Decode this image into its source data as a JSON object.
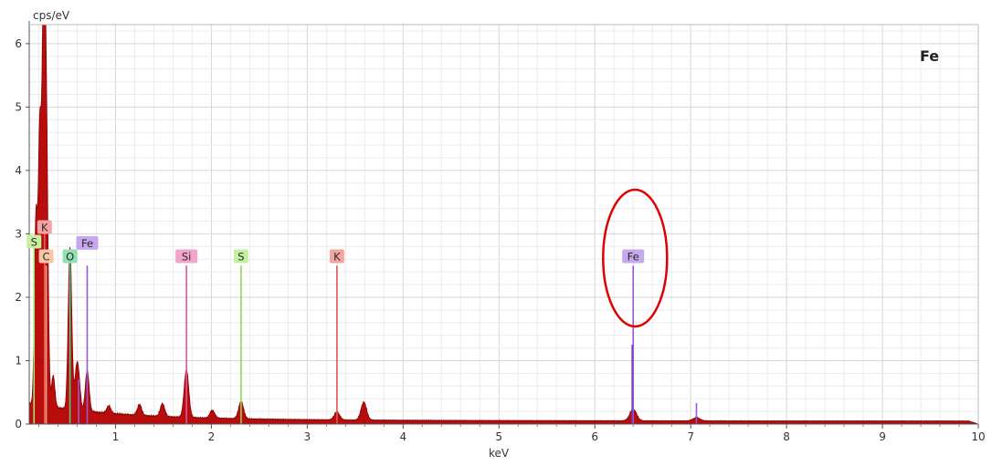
{
  "chart_data": {
    "type": "line",
    "xlabel": "keV",
    "ylabel": "cps/eV",
    "corner_label": "Fe",
    "xlim": [
      0.1,
      10
    ],
    "ylim": [
      0,
      6.3
    ],
    "x_ticks": [
      1,
      2,
      3,
      4,
      5,
      6,
      7,
      8,
      9,
      10
    ],
    "y_ticks": [
      0,
      1,
      2,
      3,
      4,
      5,
      6
    ],
    "grid": true,
    "spectrum_color": "#b30000",
    "series": [
      {
        "peaks": [
          {
            "x": 0.17,
            "y": 2.9
          },
          {
            "x": 0.21,
            "y": 4.2
          },
          {
            "x": 0.25,
            "y": 6.25
          },
          {
            "x": 0.28,
            "y": 4.0
          },
          {
            "x": 0.35,
            "y": 0.5
          },
          {
            "x": 0.525,
            "y": 2.55
          },
          {
            "x": 0.59,
            "y": 0.5
          },
          {
            "x": 0.615,
            "y": 0.45
          },
          {
            "x": 0.705,
            "y": 0.65
          },
          {
            "x": 0.93,
            "y": 0.12
          },
          {
            "x": 1.25,
            "y": 0.17
          },
          {
            "x": 1.49,
            "y": 0.2
          },
          {
            "x": 1.74,
            "y": 0.75
          },
          {
            "x": 2.01,
            "y": 0.12
          },
          {
            "x": 2.31,
            "y": 0.27
          },
          {
            "x": 3.31,
            "y": 0.12
          },
          {
            "x": 3.59,
            "y": 0.28
          },
          {
            "x": 6.4,
            "y": 0.18
          },
          {
            "x": 7.06,
            "y": 0.05
          }
        ]
      }
    ],
    "marker_lines": [
      {
        "label": "S",
        "energy": 0.15,
        "height": 2.8,
        "color": "#a6e06f",
        "label_y": 2.87
      },
      {
        "label": "K",
        "energy": 0.26,
        "height": 3.1,
        "color": "#e85c5c",
        "label_y": 3.1
      },
      {
        "label": "C",
        "energy": 0.277,
        "height": 2.5,
        "color": "#f0a37b",
        "label_y": 2.64
      },
      {
        "label": "O",
        "energy": 0.525,
        "height": 2.55,
        "color": "#53c788",
        "label_y": 2.64
      },
      {
        "label": "Fe",
        "energy": 0.705,
        "height": 2.5,
        "color": "#9a58d6",
        "label_y": 2.85
      },
      {
        "label": "Fe",
        "energy": 0.615,
        "height": 0.7,
        "color": "#9a58d6"
      },
      {
        "label": "Si",
        "energy": 1.74,
        "height": 2.5,
        "color": "#e0569c",
        "label_y": 2.64
      },
      {
        "label": "S",
        "energy": 2.31,
        "height": 2.5,
        "color": "#8ed65c",
        "label_y": 2.64
      },
      {
        "label": "K",
        "energy": 3.31,
        "height": 2.5,
        "color": "#e25555",
        "label_y": 2.64
      },
      {
        "label": "Fe",
        "energy": 6.4,
        "height": 2.5,
        "color": "#9a58d6",
        "label_y": 2.64
      },
      {
        "label": "Fe",
        "energy": 6.39,
        "height": 1.25,
        "color": "#7a3cc0"
      },
      {
        "label": "Fe",
        "energy": 7.06,
        "height": 0.33,
        "color": "#9a58d6"
      }
    ],
    "label_colors": {
      "S": "#c6f0a0",
      "K": "#f5a3a3",
      "C": "#f7c7a6",
      "O": "#8fe0b5",
      "Fe": "#c7a7ee",
      "Si": "#f2a5cc"
    },
    "highlight": {
      "type": "ellipse",
      "target": "Fe",
      "energy": 6.42,
      "color": "#e00000"
    }
  }
}
